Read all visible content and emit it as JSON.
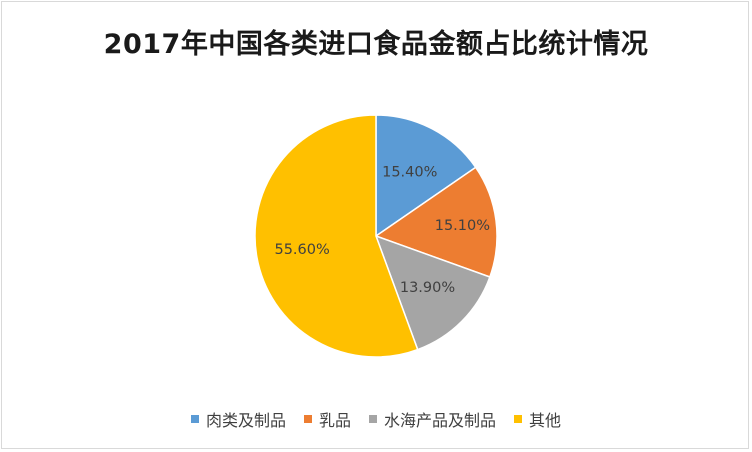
{
  "chart_data": {
    "type": "pie",
    "title": "2017年中国各类进口食品金额占比统计情况",
    "categories": [
      "肉类及制品",
      "乳品",
      "水海产品及制品",
      "其他"
    ],
    "values": [
      15.4,
      15.1,
      13.9,
      55.6
    ],
    "value_labels": [
      "15.40%",
      "15.10%",
      "13.90%",
      "55.60%"
    ],
    "colors": [
      "#5b9bd5",
      "#ed7d31",
      "#a5a5a5",
      "#ffc000"
    ],
    "start_angle": "12 o'clock",
    "direction": "clockwise",
    "legend_position": "bottom"
  }
}
